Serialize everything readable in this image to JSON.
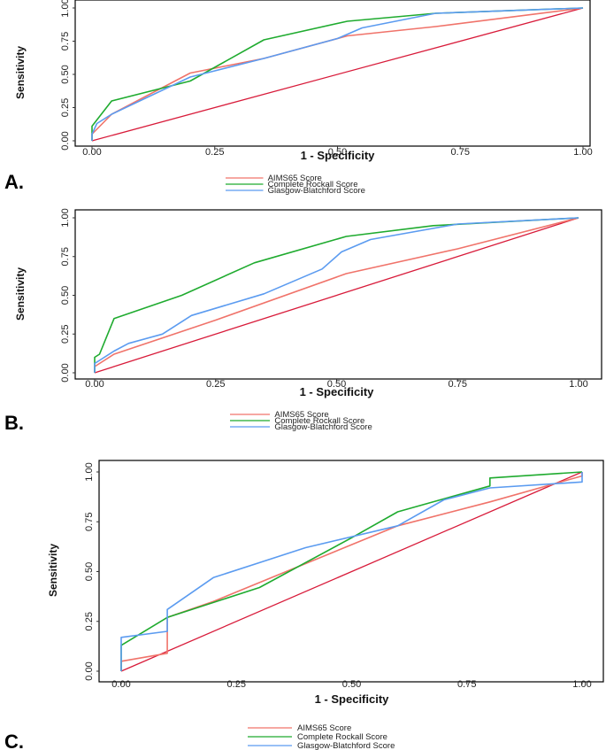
{
  "figure": {
    "panels": [
      {
        "id": "A",
        "panel_label": "A."
      },
      {
        "id": "B",
        "panel_label": "B."
      },
      {
        "id": "C",
        "panel_label": "C."
      }
    ]
  },
  "colors": {
    "AIMS65 Score": "#f0736a",
    "Complete Rockall Score": "#1fab2f",
    "Glasgow-Blatchford Score": "#5b9bf0",
    "reference": "#d81b3a",
    "frame": "#000000"
  },
  "chart_data": [
    {
      "type": "line",
      "panel": "A",
      "title": "",
      "xlabel": "1 - Specificity",
      "ylabel": "Sensitivity",
      "xlim": [
        0,
        1
      ],
      "ylim": [
        0,
        1
      ],
      "xticks": [
        "0.00",
        "0.25",
        "0.50",
        "0.75",
        "1.00"
      ],
      "yticks": [
        "0.00",
        "0.25",
        "0.50",
        "0.75",
        "1.00"
      ],
      "legend": [
        "AIMS65 Score",
        "Complete Rockall Score",
        "Glasgow-Blatchford Score"
      ],
      "series": [
        {
          "name": "AIMS65 Score",
          "x": [
            0,
            0,
            0.04,
            0.2,
            0.35,
            0.52,
            0.7,
            1.0
          ],
          "y": [
            0,
            0.05,
            0.2,
            0.51,
            0.62,
            0.79,
            0.86,
            1.0
          ]
        },
        {
          "name": "Complete Rockall Score",
          "x": [
            0,
            0,
            0.04,
            0.2,
            0.35,
            0.52,
            0.7,
            1.0
          ],
          "y": [
            0,
            0.11,
            0.3,
            0.45,
            0.76,
            0.9,
            0.96,
            1.0
          ]
        },
        {
          "name": "Glasgow-Blatchford Score",
          "x": [
            0,
            0,
            0.01,
            0.04,
            0.2,
            0.35,
            0.5,
            0.55,
            0.7,
            1.0
          ],
          "y": [
            0,
            0.05,
            0.13,
            0.2,
            0.48,
            0.62,
            0.77,
            0.85,
            0.96,
            1.0
          ]
        }
      ]
    },
    {
      "type": "line",
      "panel": "B",
      "title": "",
      "xlabel": "1 - Specificity",
      "ylabel": "Sensitivity",
      "xlim": [
        0,
        1
      ],
      "ylim": [
        0,
        1
      ],
      "xticks": [
        "0.00",
        "0.25",
        "0.50",
        "0.75",
        "1.00"
      ],
      "yticks": [
        "0.00",
        "0.25",
        "0.50",
        "0.75",
        "1.00"
      ],
      "legend": [
        "AIMS65 Score",
        "Complete Rockall Score",
        "Glasgow-Blatchford Score"
      ],
      "series": [
        {
          "name": "AIMS65 Score",
          "x": [
            0,
            0,
            0.04,
            0.25,
            0.52,
            0.75,
            1.0
          ],
          "y": [
            0,
            0.04,
            0.12,
            0.34,
            0.64,
            0.8,
            1.0
          ]
        },
        {
          "name": "Complete Rockall Score",
          "x": [
            0,
            0,
            0.01,
            0.04,
            0.18,
            0.33,
            0.52,
            0.7,
            1.0
          ],
          "y": [
            0,
            0.1,
            0.12,
            0.35,
            0.5,
            0.71,
            0.88,
            0.95,
            1.0
          ]
        },
        {
          "name": "Glasgow-Blatchford Score",
          "x": [
            0,
            0,
            0.04,
            0.07,
            0.14,
            0.2,
            0.35,
            0.47,
            0.51,
            0.57,
            0.75,
            1.0
          ],
          "y": [
            0,
            0.06,
            0.14,
            0.19,
            0.25,
            0.37,
            0.51,
            0.67,
            0.78,
            0.86,
            0.96,
            1.0
          ]
        }
      ]
    },
    {
      "type": "line",
      "panel": "C",
      "title": "",
      "xlabel": "1 - Specificity",
      "ylabel": "Sensitivity",
      "xlim": [
        0,
        1
      ],
      "ylim": [
        0,
        1
      ],
      "xticks": [
        "0.00",
        "0.25",
        "0.50",
        "0.75",
        "1.00"
      ],
      "yticks": [
        "0.00",
        "0.25",
        "0.50",
        "0.75",
        "1.00"
      ],
      "legend": [
        "AIMS65 Score",
        "Complete Rockall Score",
        "Glasgow-Blatchford Score"
      ],
      "series": [
        {
          "name": "AIMS65 Score",
          "x": [
            0,
            0,
            0.1,
            0.1,
            0.2,
            0.4,
            0.6,
            0.8,
            1.0,
            1.0
          ],
          "y": [
            0,
            0.05,
            0.09,
            0.27,
            0.35,
            0.54,
            0.73,
            0.85,
            0.98,
            1.0
          ]
        },
        {
          "name": "Complete Rockall Score",
          "x": [
            0,
            0,
            0.1,
            0.3,
            0.5,
            0.6,
            0.8,
            0.8,
            1.0
          ],
          "y": [
            0,
            0.13,
            0.27,
            0.42,
            0.67,
            0.8,
            0.93,
            0.97,
            1.0
          ]
        },
        {
          "name": "Glasgow-Blatchford Score",
          "x": [
            0,
            0,
            0.1,
            0.1,
            0.2,
            0.4,
            0.6,
            0.7,
            0.8,
            1.0,
            1.0
          ],
          "y": [
            0,
            0.17,
            0.2,
            0.31,
            0.47,
            0.62,
            0.73,
            0.86,
            0.92,
            0.95,
            1.0
          ]
        }
      ]
    }
  ]
}
